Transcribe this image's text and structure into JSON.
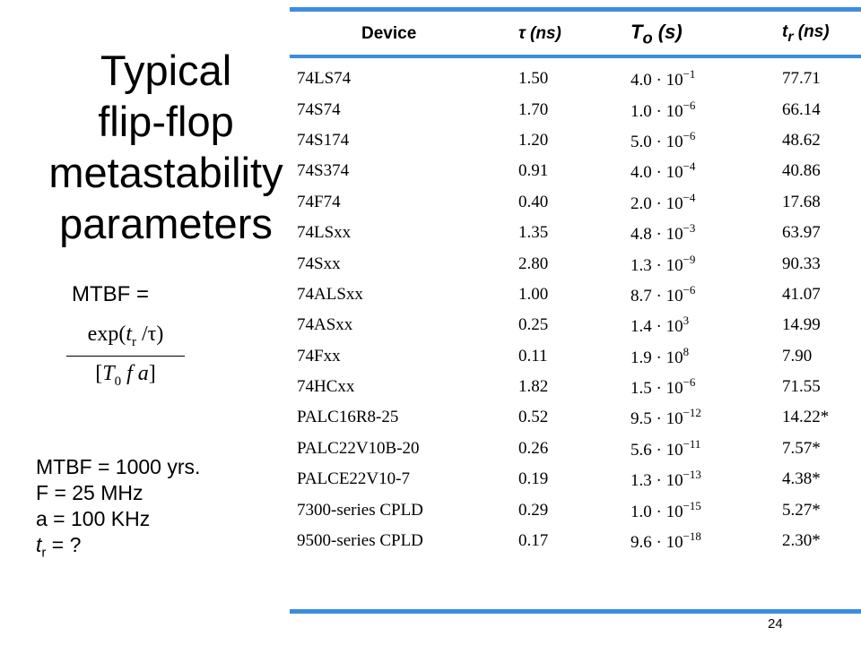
{
  "title_lines": [
    "Typical",
    "flip-flop",
    "metastability",
    "parameters"
  ],
  "formula": {
    "label": "MTBF =",
    "numerator_prefix": "exp(",
    "numerator_var": "t",
    "numerator_sub": "r",
    "numerator_suffix": " /τ)",
    "denominator_open": "[",
    "denominator_var": "T",
    "denominator_sub": "0",
    "denominator_rest": " f a",
    "denominator_close": "]"
  },
  "given": {
    "mtbf": "MTBF = 1000 yrs.",
    "f": "F = 25 MHz",
    "a": "a = 100 KHz",
    "tr_var": "t",
    "tr_sub": "r",
    "tr_rest": " = ?"
  },
  "table": {
    "headers": {
      "device": "Device",
      "tau": "τ (ns)",
      "to_var": "T",
      "to_sub": "o",
      "to_rest": " (s)",
      "tr_var": "t",
      "tr_sub": "r",
      "tr_rest": " (ns)"
    },
    "rows": [
      {
        "device": "74LS74",
        "tau": "1.50",
        "to_base": "4.0 · 10",
        "to_exp": "−1",
        "tr": "77.71"
      },
      {
        "device": "74S74",
        "tau": "1.70",
        "to_base": "1.0 · 10",
        "to_exp": "−6",
        "tr": "66.14"
      },
      {
        "device": "74S174",
        "tau": "1.20",
        "to_base": "5.0 · 10",
        "to_exp": "−6",
        "tr": "48.62"
      },
      {
        "device": "74S374",
        "tau": "0.91",
        "to_base": "4.0 · 10",
        "to_exp": "−4",
        "tr": "40.86"
      },
      {
        "device": "74F74",
        "tau": "0.40",
        "to_base": "2.0 · 10",
        "to_exp": "−4",
        "tr": "17.68"
      },
      {
        "device": "74LSxx",
        "tau": "1.35",
        "to_base": "4.8 · 10",
        "to_exp": "−3",
        "tr": "63.97"
      },
      {
        "device": "74Sxx",
        "tau": "2.80",
        "to_base": "1.3 · 10",
        "to_exp": "−9",
        "tr": "90.33"
      },
      {
        "device": "74ALSxx",
        "tau": "1.00",
        "to_base": "8.7 · 10",
        "to_exp": "−6",
        "tr": "41.07"
      },
      {
        "device": "74ASxx",
        "tau": "0.25",
        "to_base": "1.4 · 10",
        "to_exp": "3",
        "tr": "14.99"
      },
      {
        "device": "74Fxx",
        "tau": "0.11",
        "to_base": "1.9 · 10",
        "to_exp": "8",
        "tr": "7.90"
      },
      {
        "device": "74HCxx",
        "tau": "1.82",
        "to_base": "1.5 · 10",
        "to_exp": "−6",
        "tr": "71.55"
      },
      {
        "device": "PALC16R8-25",
        "tau": "0.52",
        "to_base": "9.5 · 10",
        "to_exp": "−12",
        "tr": "14.22*"
      },
      {
        "device": "PALC22V10B-20",
        "tau": "0.26",
        "to_base": "5.6 · 10",
        "to_exp": "−11",
        "tr": "7.57*"
      },
      {
        "device": "PALCE22V10-7",
        "tau": "0.19",
        "to_base": "1.3 · 10",
        "to_exp": "−13",
        "tr": "4.38*"
      },
      {
        "device": "7300-series CPLD",
        "tau": "0.29",
        "to_base": "1.0 · 10",
        "to_exp": "−15",
        "tr": "5.27*"
      },
      {
        "device": "9500-series CPLD",
        "tau": "0.17",
        "to_base": "9.6 · 10",
        "to_exp": "−18",
        "tr": "2.30*"
      }
    ]
  },
  "page_number": "24",
  "colors": {
    "rule": "#3a8ddf"
  }
}
